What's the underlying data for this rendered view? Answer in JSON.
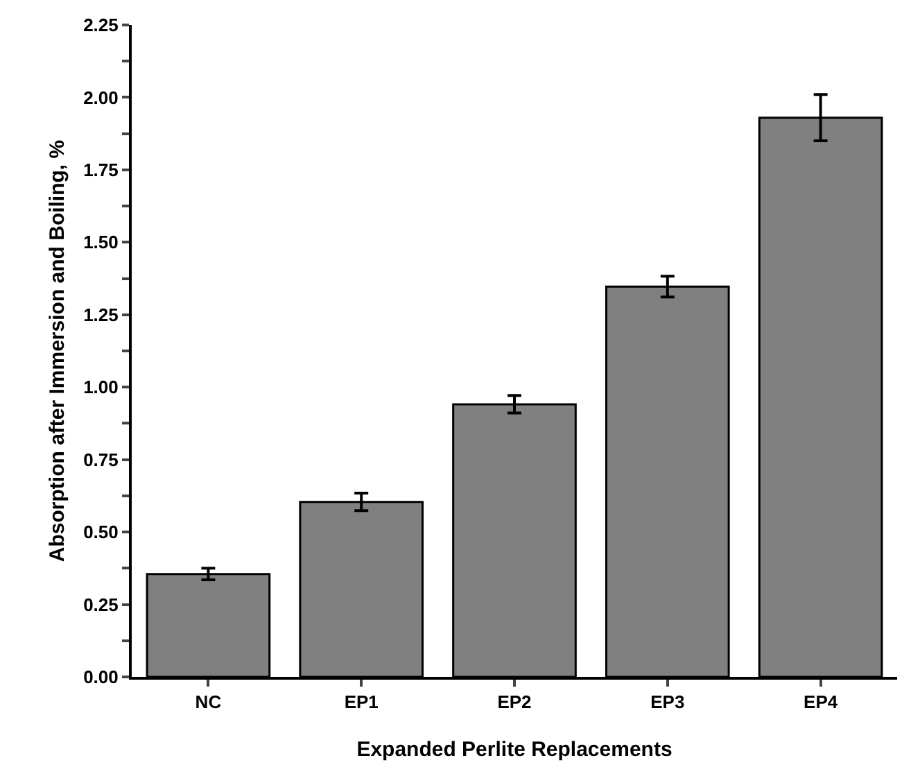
{
  "chart_data": {
    "type": "bar",
    "xlabel": "Expanded Perlite Replacements",
    "ylabel": "Absorption after Immersion and Boiling, %",
    "categories": [
      "NC",
      "EP1",
      "EP2",
      "EP3",
      "EP4"
    ],
    "values": [
      0.355,
      0.604,
      0.941,
      1.347,
      1.93
    ],
    "errors": [
      0.02,
      0.03,
      0.03,
      0.036,
      0.08
    ],
    "color": "#808080",
    "ylim": [
      0,
      2.25
    ],
    "yticks": [
      {
        "value": 0,
        "label": "0.00"
      },
      {
        "value": 0.125,
        "label": null
      },
      0.25,
      {
        "value": 0.375,
        "label": null
      },
      {
        "value": 0.5,
        "label": "0.50"
      },
      {
        "value": 0.625,
        "label": null
      },
      0.75,
      {
        "value": 0.875,
        "label": null
      },
      {
        "value": 1,
        "label": "1.00"
      },
      {
        "value": 1.125,
        "label": null
      },
      1.25,
      {
        "value": 1.375,
        "label": null
      },
      {
        "value": 1.5,
        "label": "1.50"
      },
      {
        "value": 1.625,
        "label": null
      },
      1.75,
      {
        "value": 1.875,
        "label": null
      },
      {
        "value": 2,
        "label": "2.00"
      },
      {
        "value": 2.125,
        "label": null
      },
      2.25
    ],
    "grid": false
  }
}
